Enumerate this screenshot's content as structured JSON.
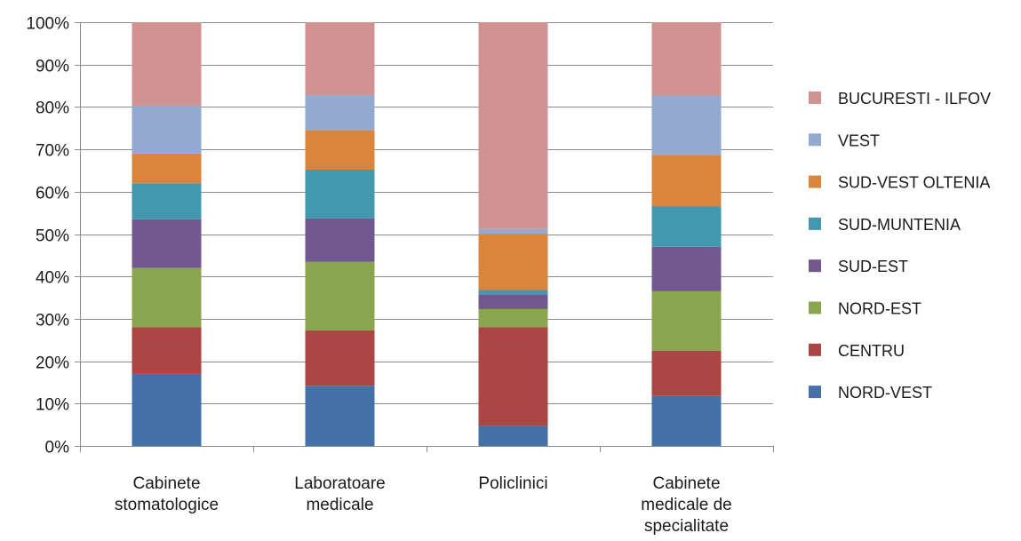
{
  "chart_data": {
    "type": "bar",
    "stacked": true,
    "percent_stacked": true,
    "categories": [
      [
        "Cabinete",
        "stomatologice"
      ],
      [
        "Laboratoare",
        "medicale"
      ],
      [
        "Policlinici"
      ],
      [
        "Cabinete",
        "medicale de",
        "specialitate"
      ]
    ],
    "ylim": [
      0,
      100
    ],
    "y_ticks": [
      "0%",
      "10%",
      "20%",
      "30%",
      "40%",
      "50%",
      "60%",
      "70%",
      "80%",
      "90%",
      "100%"
    ],
    "grid": true,
    "legend_position": "right",
    "series": [
      {
        "name": "NORD-VEST",
        "color": "#4472a8",
        "values": [
          17.0,
          14.2,
          4.7,
          11.8
        ]
      },
      {
        "name": "CENTRU",
        "color": "#aa4643",
        "values": [
          11.0,
          13.1,
          23.3,
          10.7
        ]
      },
      {
        "name": "NORD-EST",
        "color": "#89a54e",
        "values": [
          14.0,
          16.2,
          4.3,
          14.0
        ]
      },
      {
        "name": "SUD-EST",
        "color": "#71588f",
        "values": [
          11.5,
          10.2,
          3.5,
          10.5
        ]
      },
      {
        "name": "SUD-MUNTENIA",
        "color": "#4198af",
        "values": [
          8.5,
          11.5,
          1.0,
          9.5
        ]
      },
      {
        "name": "SUD-VEST OLTENIA",
        "color": "#db843d",
        "values": [
          7.0,
          9.3,
          13.2,
          12.2
        ]
      },
      {
        "name": "VEST",
        "color": "#93a9cf",
        "values": [
          11.3,
          8.3,
          1.2,
          14.0
        ]
      },
      {
        "name": "BUCURESTI - ILFOV",
        "color": "#d09392",
        "values": [
          19.7,
          17.2,
          48.8,
          17.3
        ]
      }
    ]
  }
}
